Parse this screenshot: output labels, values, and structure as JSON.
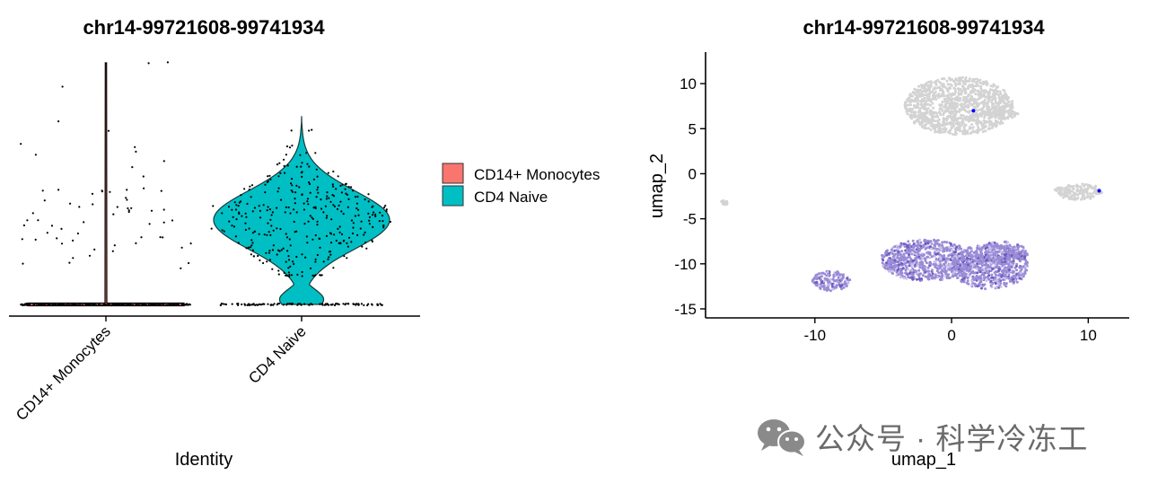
{
  "watermark": {
    "text": "公众号 · 科学冷冻工",
    "icon": "wechat-icon"
  },
  "colors": {
    "monocytes": "#F8766D",
    "naive": "#00BFC4",
    "umap_background": "#D3D3D3",
    "umap_expr_low": "#9A8CD6",
    "umap_expr_high": "#0000FF"
  },
  "chart_data": [
    {
      "type": "violin",
      "title": "chr14-99721608-99741934",
      "xlabel": "Identity",
      "ylabel": "",
      "categories": [
        "CD14+ Monocytes",
        "CD4 Naive"
      ],
      "legend": {
        "placement": "right",
        "entries": [
          {
            "label": "CD14+ Monocytes",
            "color": "#F8766D"
          },
          {
            "label": "CD4 Naive",
            "color": "#00BFC4"
          }
        ]
      },
      "series": [
        {
          "category": "CD14+ Monocytes",
          "min": 0,
          "max": 1.0,
          "median": 0,
          "nonzero_fraction": 0.05
        },
        {
          "category": "CD4 Naive",
          "min": 0,
          "max": 0.78,
          "median": 0.35,
          "peak_density_at": 0.35
        }
      ],
      "y_ticks_shown": false,
      "grid": false
    },
    {
      "type": "scatter",
      "title": "chr14-99721608-99741934",
      "xlabel": "umap_1",
      "ylabel": "umap_2",
      "xlim": [
        -18,
        13
      ],
      "ylim": [
        -16,
        13.5
      ],
      "x_ticks": [
        -10,
        0,
        10
      ],
      "y_ticks": [
        -15,
        -10,
        -5,
        0,
        5,
        10
      ],
      "grid": false,
      "clusters": [
        {
          "group": "CD14+ Monocytes",
          "expression": "low",
          "cx": 0.5,
          "cy": 7.5,
          "rx": 4.0,
          "ry": 3.2
        },
        {
          "group": "CD14+ Monocytes",
          "expression": "low",
          "cx": 3.6,
          "cy": 6.6,
          "rx": 1.3,
          "ry": 0.5
        },
        {
          "group": "other",
          "expression": "low",
          "cx": 9.3,
          "cy": -2.0,
          "rx": 1.8,
          "ry": 0.9
        },
        {
          "group": "other",
          "expression": "low",
          "cx": -16.6,
          "cy": -3.2,
          "rx": 0.3,
          "ry": 0.25
        },
        {
          "group": "CD4 Naive",
          "expression": "high",
          "cx": -1.8,
          "cy": -9.6,
          "rx": 3.4,
          "ry": 2.3
        },
        {
          "group": "CD4 Naive",
          "expression": "high",
          "cx": 2.8,
          "cy": -10.3,
          "rx": 2.8,
          "ry": 2.5
        },
        {
          "group": "CD4 Naive",
          "expression": "high",
          "cx": 3.6,
          "cy": -8.8,
          "rx": 2.0,
          "ry": 1.3
        },
        {
          "group": "CD4 Naive",
          "expression": "high",
          "cx": -8.8,
          "cy": -11.9,
          "rx": 1.4,
          "ry": 1.1
        }
      ]
    }
  ]
}
